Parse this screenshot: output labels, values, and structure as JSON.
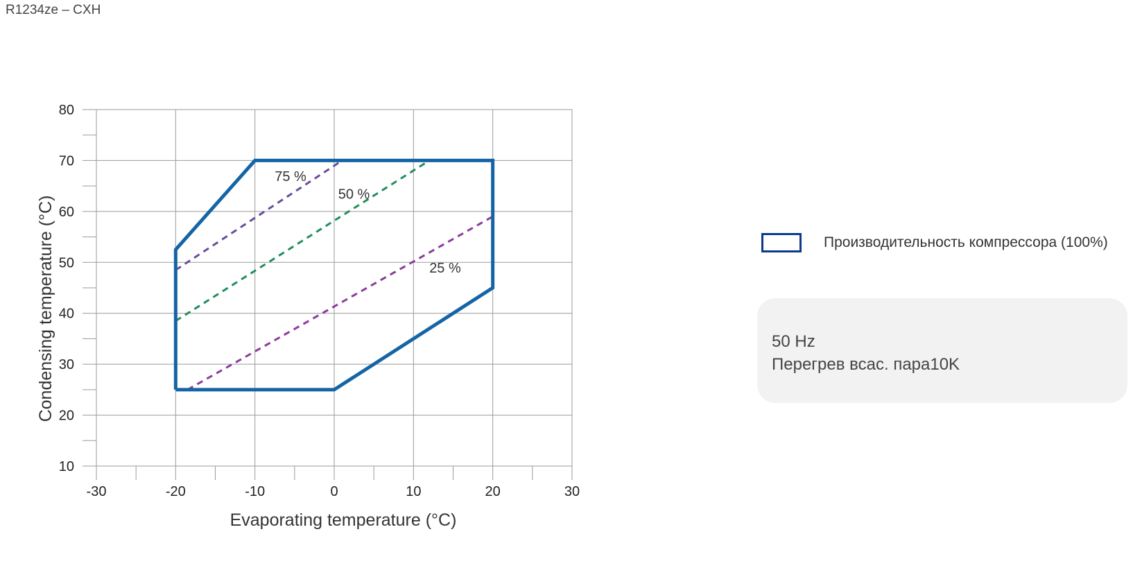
{
  "page": {
    "title": "R1234ze – CXH"
  },
  "legend": {
    "label": "Производительность компрессора (100%)",
    "color": "#0b3a8c"
  },
  "info": {
    "line1": "50 Hz",
    "line2": "Перегрев всас. пара10K"
  },
  "chart_data": {
    "type": "line",
    "title": "",
    "xlabel": "Evaporating temperature (°C)",
    "ylabel": "Condensing temperature (°C)",
    "xlim": [
      -30,
      30
    ],
    "ylim": [
      10,
      80
    ],
    "x_ticks": [
      -30,
      -20,
      -10,
      0,
      10,
      20,
      30
    ],
    "y_ticks": [
      10,
      20,
      30,
      40,
      50,
      60,
      70,
      80
    ],
    "grid": true,
    "envelope": {
      "name": "Производительность компрессора (100%)",
      "color": "#1565a6",
      "points": [
        [
          -20,
          25
        ],
        [
          0,
          25
        ],
        [
          20,
          45
        ],
        [
          20,
          70
        ],
        [
          -10,
          70
        ],
        [
          -20,
          52.5
        ],
        [
          -20,
          25
        ]
      ]
    },
    "series": [
      {
        "name": "75 %",
        "color": "#6a4c9c",
        "style": "dashed",
        "points": [
          [
            -20,
            48.5
          ],
          [
            1,
            70
          ]
        ],
        "label_at": [
          -7.5,
          66
        ]
      },
      {
        "name": "50 %",
        "color": "#1f8f5a",
        "style": "dashed",
        "points": [
          [
            -20,
            38.5
          ],
          [
            12,
            70
          ]
        ],
        "label_at": [
          0.5,
          62.5
        ]
      },
      {
        "name": "25 %",
        "color": "#8c3a9c",
        "style": "dashed",
        "points": [
          [
            -18.5,
            25
          ],
          [
            20,
            59
          ]
        ],
        "label_at": [
          12,
          48
        ]
      }
    ]
  }
}
